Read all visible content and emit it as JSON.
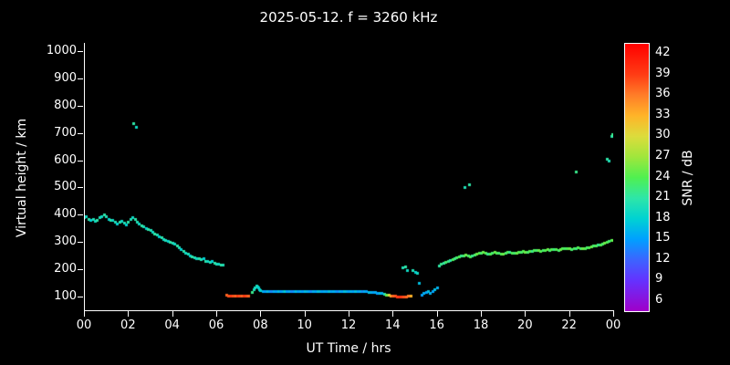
{
  "chart_data": {
    "type": "scatter",
    "title": "2025-05-12. f = 3260 kHz",
    "xlabel": "UT Time / hrs",
    "ylabel": "Virtual height / km",
    "colorbar_label": "SNR / dB",
    "xlim": [
      0,
      24
    ],
    "ylim": [
      50,
      1030
    ],
    "snr_range": [
      4.5,
      43.5
    ],
    "background": "#000000",
    "axis_color": "#ffffff",
    "grid": false,
    "legend": "colorbar-right",
    "x_ticks": [
      {
        "value": 0,
        "label": "00"
      },
      {
        "value": 2,
        "label": "02"
      },
      {
        "value": 4,
        "label": "04"
      },
      {
        "value": 6,
        "label": "06"
      },
      {
        "value": 8,
        "label": "08"
      },
      {
        "value": 10,
        "label": "10"
      },
      {
        "value": 12,
        "label": "12"
      },
      {
        "value": 14,
        "label": "14"
      },
      {
        "value": 16,
        "label": "16"
      },
      {
        "value": 18,
        "label": "18"
      },
      {
        "value": 20,
        "label": "20"
      },
      {
        "value": 22,
        "label": "22"
      },
      {
        "value": 24,
        "label": "00"
      }
    ],
    "y_ticks": [
      {
        "value": 100,
        "label": "100"
      },
      {
        "value": 200,
        "label": "200"
      },
      {
        "value": 300,
        "label": "300"
      },
      {
        "value": 400,
        "label": "400"
      },
      {
        "value": 500,
        "label": "500"
      },
      {
        "value": 600,
        "label": "600"
      },
      {
        "value": 700,
        "label": "700"
      },
      {
        "value": 800,
        "label": "800"
      },
      {
        "value": 900,
        "label": "900"
      },
      {
        "value": 1000,
        "label": "1000"
      }
    ],
    "cb_ticks": [
      {
        "value": 6,
        "label": "6"
      },
      {
        "value": 9,
        "label": "9"
      },
      {
        "value": 12,
        "label": "12"
      },
      {
        "value": 15,
        "label": "15"
      },
      {
        "value": 18,
        "label": "18"
      },
      {
        "value": 21,
        "label": "21"
      },
      {
        "value": 24,
        "label": "24"
      },
      {
        "value": 27,
        "label": "27"
      },
      {
        "value": 30,
        "label": "30"
      },
      {
        "value": 33,
        "label": "33"
      },
      {
        "value": 36,
        "label": "36"
      },
      {
        "value": 39,
        "label": "39"
      },
      {
        "value": 42,
        "label": "42"
      }
    ],
    "palette": [
      {
        "value": 4.5,
        "color": "#a000c8"
      },
      {
        "value": 9,
        "color": "#6432ff"
      },
      {
        "value": 12,
        "color": "#3c64ff"
      },
      {
        "value": 15,
        "color": "#00a0ff"
      },
      {
        "value": 18,
        "color": "#00d2d2"
      },
      {
        "value": 21,
        "color": "#2ee6a8"
      },
      {
        "value": 24,
        "color": "#50f050"
      },
      {
        "value": 27,
        "color": "#a0e63c"
      },
      {
        "value": 30,
        "color": "#dcdc3c"
      },
      {
        "value": 33,
        "color": "#ffb428"
      },
      {
        "value": 36,
        "color": "#ff7d28"
      },
      {
        "value": 39,
        "color": "#ff3c14"
      },
      {
        "value": 43.5,
        "color": "#ff0000"
      }
    ],
    "points": [
      [
        0.0,
        390,
        20
      ],
      [
        0.1,
        394,
        19
      ],
      [
        0.2,
        386,
        21
      ],
      [
        0.3,
        380,
        18
      ],
      [
        0.4,
        386,
        20
      ],
      [
        0.5,
        378,
        19
      ],
      [
        0.6,
        382,
        21
      ],
      [
        0.7,
        390,
        20
      ],
      [
        0.8,
        396,
        19
      ],
      [
        0.9,
        400,
        21
      ],
      [
        1.0,
        394,
        20
      ],
      [
        1.1,
        386,
        18
      ],
      [
        1.2,
        382,
        21
      ],
      [
        1.3,
        380,
        19
      ],
      [
        1.4,
        374,
        20
      ],
      [
        1.5,
        368,
        18
      ],
      [
        1.6,
        373,
        21
      ],
      [
        1.7,
        377,
        19
      ],
      [
        1.8,
        370,
        20
      ],
      [
        1.9,
        366,
        18
      ],
      [
        2.0,
        374,
        21
      ],
      [
        2.1,
        384,
        20
      ],
      [
        2.2,
        390,
        19
      ],
      [
        2.3,
        386,
        21
      ],
      [
        2.4,
        376,
        20
      ],
      [
        2.5,
        368,
        19
      ],
      [
        2.6,
        362,
        21
      ],
      [
        2.7,
        357,
        20
      ],
      [
        2.8,
        352,
        18
      ],
      [
        2.9,
        348,
        21
      ],
      [
        3.0,
        344,
        20
      ],
      [
        3.1,
        338,
        19
      ],
      [
        3.2,
        332,
        21
      ],
      [
        3.3,
        326,
        20
      ],
      [
        3.4,
        322,
        18
      ],
      [
        3.5,
        318,
        21
      ],
      [
        3.6,
        312,
        19
      ],
      [
        3.7,
        308,
        20
      ],
      [
        3.8,
        305,
        18
      ],
      [
        3.9,
        302,
        21
      ],
      [
        4.0,
        299,
        20
      ],
      [
        4.1,
        293,
        19
      ],
      [
        4.2,
        287,
        21
      ],
      [
        4.3,
        281,
        20
      ],
      [
        4.4,
        275,
        18
      ],
      [
        4.5,
        268,
        21
      ],
      [
        4.6,
        262,
        19
      ],
      [
        4.7,
        257,
        20
      ],
      [
        4.8,
        252,
        18
      ],
      [
        4.9,
        248,
        21
      ],
      [
        5.0,
        245,
        20
      ],
      [
        5.1,
        242,
        19
      ],
      [
        5.2,
        239,
        21
      ],
      [
        5.3,
        236,
        20
      ],
      [
        5.4,
        240,
        18
      ],
      [
        5.5,
        232,
        21
      ],
      [
        5.6,
        229,
        19
      ],
      [
        5.7,
        227,
        20
      ],
      [
        5.8,
        231,
        18
      ],
      [
        5.9,
        224,
        21
      ],
      [
        6.0,
        222,
        20
      ],
      [
        6.1,
        220,
        19
      ],
      [
        6.2,
        218,
        21
      ],
      [
        6.3,
        217,
        20
      ],
      [
        2.25,
        735,
        21
      ],
      [
        2.35,
        722,
        19
      ],
      [
        6.45,
        106,
        37
      ],
      [
        6.55,
        105,
        38
      ],
      [
        6.65,
        104,
        39
      ],
      [
        6.75,
        105,
        38
      ],
      [
        6.85,
        104,
        37
      ],
      [
        6.95,
        105,
        39
      ],
      [
        7.05,
        104,
        38
      ],
      [
        7.15,
        105,
        37
      ],
      [
        7.25,
        104,
        39
      ],
      [
        7.35,
        105,
        38
      ],
      [
        7.45,
        105,
        37
      ],
      [
        7.6,
        116,
        22
      ],
      [
        7.7,
        128,
        20
      ],
      [
        7.75,
        134,
        19
      ],
      [
        7.8,
        140,
        20
      ],
      [
        7.85,
        138,
        19
      ],
      [
        7.9,
        133,
        18
      ],
      [
        7.95,
        128,
        19
      ],
      [
        8.0,
        124,
        18
      ],
      [
        8.1,
        121,
        16
      ],
      [
        8.2,
        120,
        15
      ],
      [
        8.3,
        119,
        17
      ],
      [
        8.4,
        120,
        15
      ],
      [
        8.5,
        121,
        14
      ],
      [
        8.6,
        120,
        16
      ],
      [
        8.7,
        119,
        15
      ],
      [
        8.8,
        120,
        17
      ],
      [
        8.9,
        121,
        15
      ],
      [
        9.0,
        120,
        16
      ],
      [
        9.1,
        119,
        18
      ],
      [
        9.2,
        120,
        15
      ],
      [
        9.3,
        121,
        16
      ],
      [
        9.4,
        120,
        14
      ],
      [
        9.5,
        119,
        15
      ],
      [
        9.6,
        120,
        17
      ],
      [
        9.7,
        120,
        15
      ],
      [
        9.8,
        121,
        16
      ],
      [
        9.9,
        120,
        15
      ],
      [
        10.0,
        119,
        17
      ],
      [
        10.1,
        120,
        16
      ],
      [
        10.2,
        121,
        15
      ],
      [
        10.3,
        120,
        14
      ],
      [
        10.4,
        119,
        16
      ],
      [
        10.5,
        120,
        15
      ],
      [
        10.6,
        120,
        17
      ],
      [
        10.7,
        121,
        16
      ],
      [
        10.8,
        120,
        15
      ],
      [
        10.9,
        119,
        16
      ],
      [
        11.0,
        120,
        15
      ],
      [
        11.1,
        120,
        17
      ],
      [
        11.2,
        119,
        15
      ],
      [
        11.3,
        120,
        16
      ],
      [
        11.4,
        121,
        15
      ],
      [
        11.5,
        120,
        14
      ],
      [
        11.6,
        119,
        16
      ],
      [
        11.7,
        120,
        15
      ],
      [
        11.8,
        120,
        17
      ],
      [
        11.9,
        121,
        16
      ],
      [
        12.0,
        120,
        15
      ],
      [
        12.1,
        119,
        16
      ],
      [
        12.2,
        120,
        15
      ],
      [
        12.3,
        120,
        17
      ],
      [
        12.4,
        119,
        15
      ],
      [
        12.5,
        120,
        16
      ],
      [
        12.6,
        121,
        14
      ],
      [
        12.7,
        120,
        16
      ],
      [
        12.8,
        119,
        15
      ],
      [
        12.9,
        118,
        17
      ],
      [
        13.0,
        118,
        16
      ],
      [
        13.1,
        117,
        15
      ],
      [
        13.2,
        116,
        16
      ],
      [
        13.3,
        115,
        15
      ],
      [
        13.4,
        114,
        17
      ],
      [
        13.5,
        112,
        16
      ],
      [
        13.6,
        110,
        20
      ],
      [
        13.7,
        108,
        25
      ],
      [
        13.8,
        106,
        30
      ],
      [
        13.9,
        104,
        34
      ],
      [
        14.0,
        103,
        37
      ],
      [
        14.1,
        102,
        38
      ],
      [
        14.2,
        101,
        39
      ],
      [
        14.3,
        101,
        40
      ],
      [
        14.4,
        100,
        39
      ],
      [
        14.5,
        100,
        38
      ],
      [
        14.6,
        101,
        37
      ],
      [
        14.7,
        102,
        36
      ],
      [
        14.8,
        103,
        33
      ],
      [
        14.45,
        207,
        20
      ],
      [
        14.55,
        212,
        21
      ],
      [
        14.65,
        198,
        19
      ],
      [
        14.9,
        196,
        20
      ],
      [
        15.0,
        191,
        18
      ],
      [
        15.1,
        186,
        19
      ],
      [
        15.2,
        152,
        17
      ],
      [
        15.3,
        108,
        15
      ],
      [
        15.4,
        112,
        16
      ],
      [
        15.5,
        116,
        15
      ],
      [
        15.6,
        119,
        17
      ],
      [
        15.7,
        113,
        16
      ],
      [
        15.8,
        121,
        15
      ],
      [
        15.9,
        127,
        17
      ],
      [
        16.0,
        132,
        16
      ],
      [
        16.1,
        215,
        21
      ],
      [
        16.2,
        220,
        22
      ],
      [
        16.3,
        224,
        21
      ],
      [
        16.4,
        228,
        23
      ],
      [
        16.5,
        230,
        22
      ],
      [
        16.6,
        234,
        21
      ],
      [
        16.7,
        238,
        24
      ],
      [
        16.8,
        241,
        22
      ],
      [
        16.9,
        244,
        23
      ],
      [
        17.0,
        247,
        24
      ],
      [
        17.1,
        250,
        22
      ],
      [
        17.2,
        252,
        23
      ],
      [
        17.3,
        254,
        25
      ],
      [
        17.4,
        250,
        23
      ],
      [
        17.5,
        248,
        24
      ],
      [
        17.6,
        252,
        22
      ],
      [
        17.7,
        255,
        23
      ],
      [
        17.8,
        258,
        25
      ],
      [
        17.9,
        260,
        24
      ],
      [
        18.0,
        262,
        23
      ],
      [
        18.1,
        263,
        25
      ],
      [
        18.2,
        260,
        24
      ],
      [
        18.3,
        257,
        22
      ],
      [
        18.4,
        259,
        24
      ],
      [
        18.5,
        261,
        23
      ],
      [
        18.6,
        263,
        25
      ],
      [
        18.7,
        262,
        24
      ],
      [
        18.8,
        260,
        23
      ],
      [
        18.9,
        258,
        24
      ],
      [
        19.0,
        259,
        25
      ],
      [
        19.1,
        261,
        23
      ],
      [
        19.2,
        263,
        24
      ],
      [
        19.3,
        264,
        22
      ],
      [
        19.4,
        262,
        24
      ],
      [
        19.5,
        260,
        23
      ],
      [
        19.6,
        262,
        25
      ],
      [
        19.7,
        264,
        24
      ],
      [
        19.8,
        265,
        23
      ],
      [
        19.9,
        266,
        24
      ],
      [
        20.0,
        265,
        25
      ],
      [
        20.1,
        264,
        23
      ],
      [
        20.2,
        266,
        24
      ],
      [
        20.3,
        268,
        22
      ],
      [
        20.4,
        270,
        24
      ],
      [
        20.5,
        271,
        23
      ],
      [
        20.6,
        270,
        25
      ],
      [
        20.7,
        269,
        24
      ],
      [
        20.8,
        270,
        23
      ],
      [
        20.9,
        272,
        24
      ],
      [
        21.0,
        273,
        25
      ],
      [
        21.1,
        272,
        23
      ],
      [
        21.2,
        274,
        24
      ],
      [
        21.3,
        275,
        22
      ],
      [
        21.4,
        273,
        24
      ],
      [
        21.5,
        272,
        23
      ],
      [
        21.6,
        274,
        25
      ],
      [
        21.7,
        276,
        24
      ],
      [
        21.8,
        277,
        23
      ],
      [
        21.9,
        278,
        24
      ],
      [
        22.0,
        276,
        25
      ],
      [
        22.1,
        275,
        23
      ],
      [
        22.2,
        277,
        24
      ],
      [
        22.3,
        278,
        22
      ],
      [
        22.4,
        280,
        24
      ],
      [
        22.5,
        278,
        23
      ],
      [
        22.6,
        276,
        25
      ],
      [
        22.7,
        278,
        24
      ],
      [
        22.8,
        280,
        23
      ],
      [
        22.9,
        282,
        24
      ],
      [
        23.0,
        284,
        25
      ],
      [
        23.1,
        286,
        23
      ],
      [
        23.2,
        288,
        24
      ],
      [
        23.3,
        290,
        22
      ],
      [
        23.4,
        292,
        24
      ],
      [
        23.5,
        295,
        23
      ],
      [
        23.6,
        298,
        25
      ],
      [
        23.7,
        300,
        24
      ],
      [
        23.8,
        303,
        23
      ],
      [
        23.9,
        306,
        24
      ],
      [
        24.0,
        308,
        25
      ],
      [
        17.25,
        500,
        20
      ],
      [
        17.45,
        512,
        21
      ],
      [
        22.3,
        560,
        22
      ],
      [
        23.7,
        604,
        21
      ],
      [
        23.78,
        600,
        20
      ],
      [
        23.9,
        688,
        21
      ],
      [
        23.97,
        694,
        22
      ]
    ]
  }
}
